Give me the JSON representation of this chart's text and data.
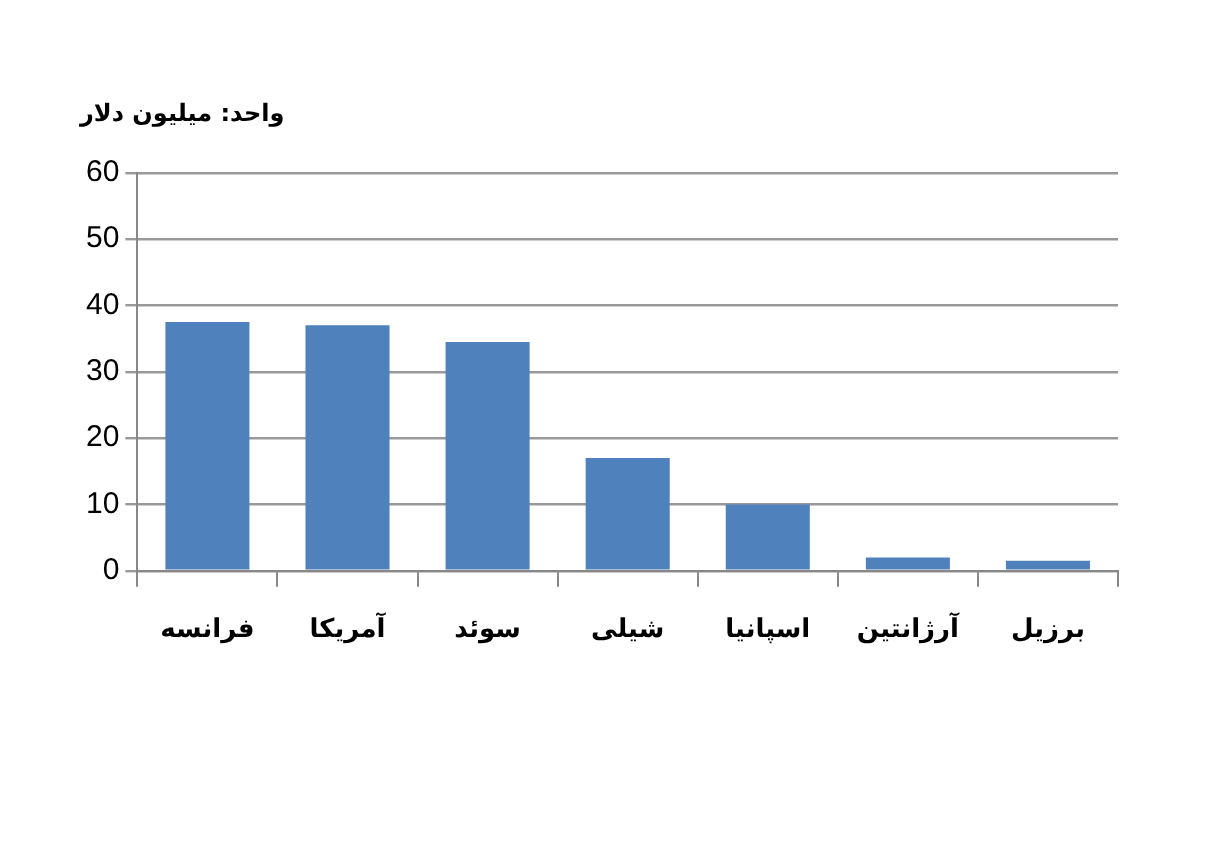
{
  "chart_data": {
    "type": "bar",
    "title": "واحد: میلیون دلار",
    "categories": [
      "فرانسه",
      "آمریکا",
      "سوئد",
      "شیلی",
      "اسپانیا",
      "آرژانتین",
      "برزیل"
    ],
    "values": [
      37.5,
      37,
      34.5,
      17,
      10,
      2,
      1.5
    ],
    "color": "#4f81bd",
    "ylim": [
      0,
      60
    ],
    "yticks": [
      0,
      10,
      20,
      30,
      40,
      50,
      60
    ],
    "grid": "y",
    "legend": false
  }
}
